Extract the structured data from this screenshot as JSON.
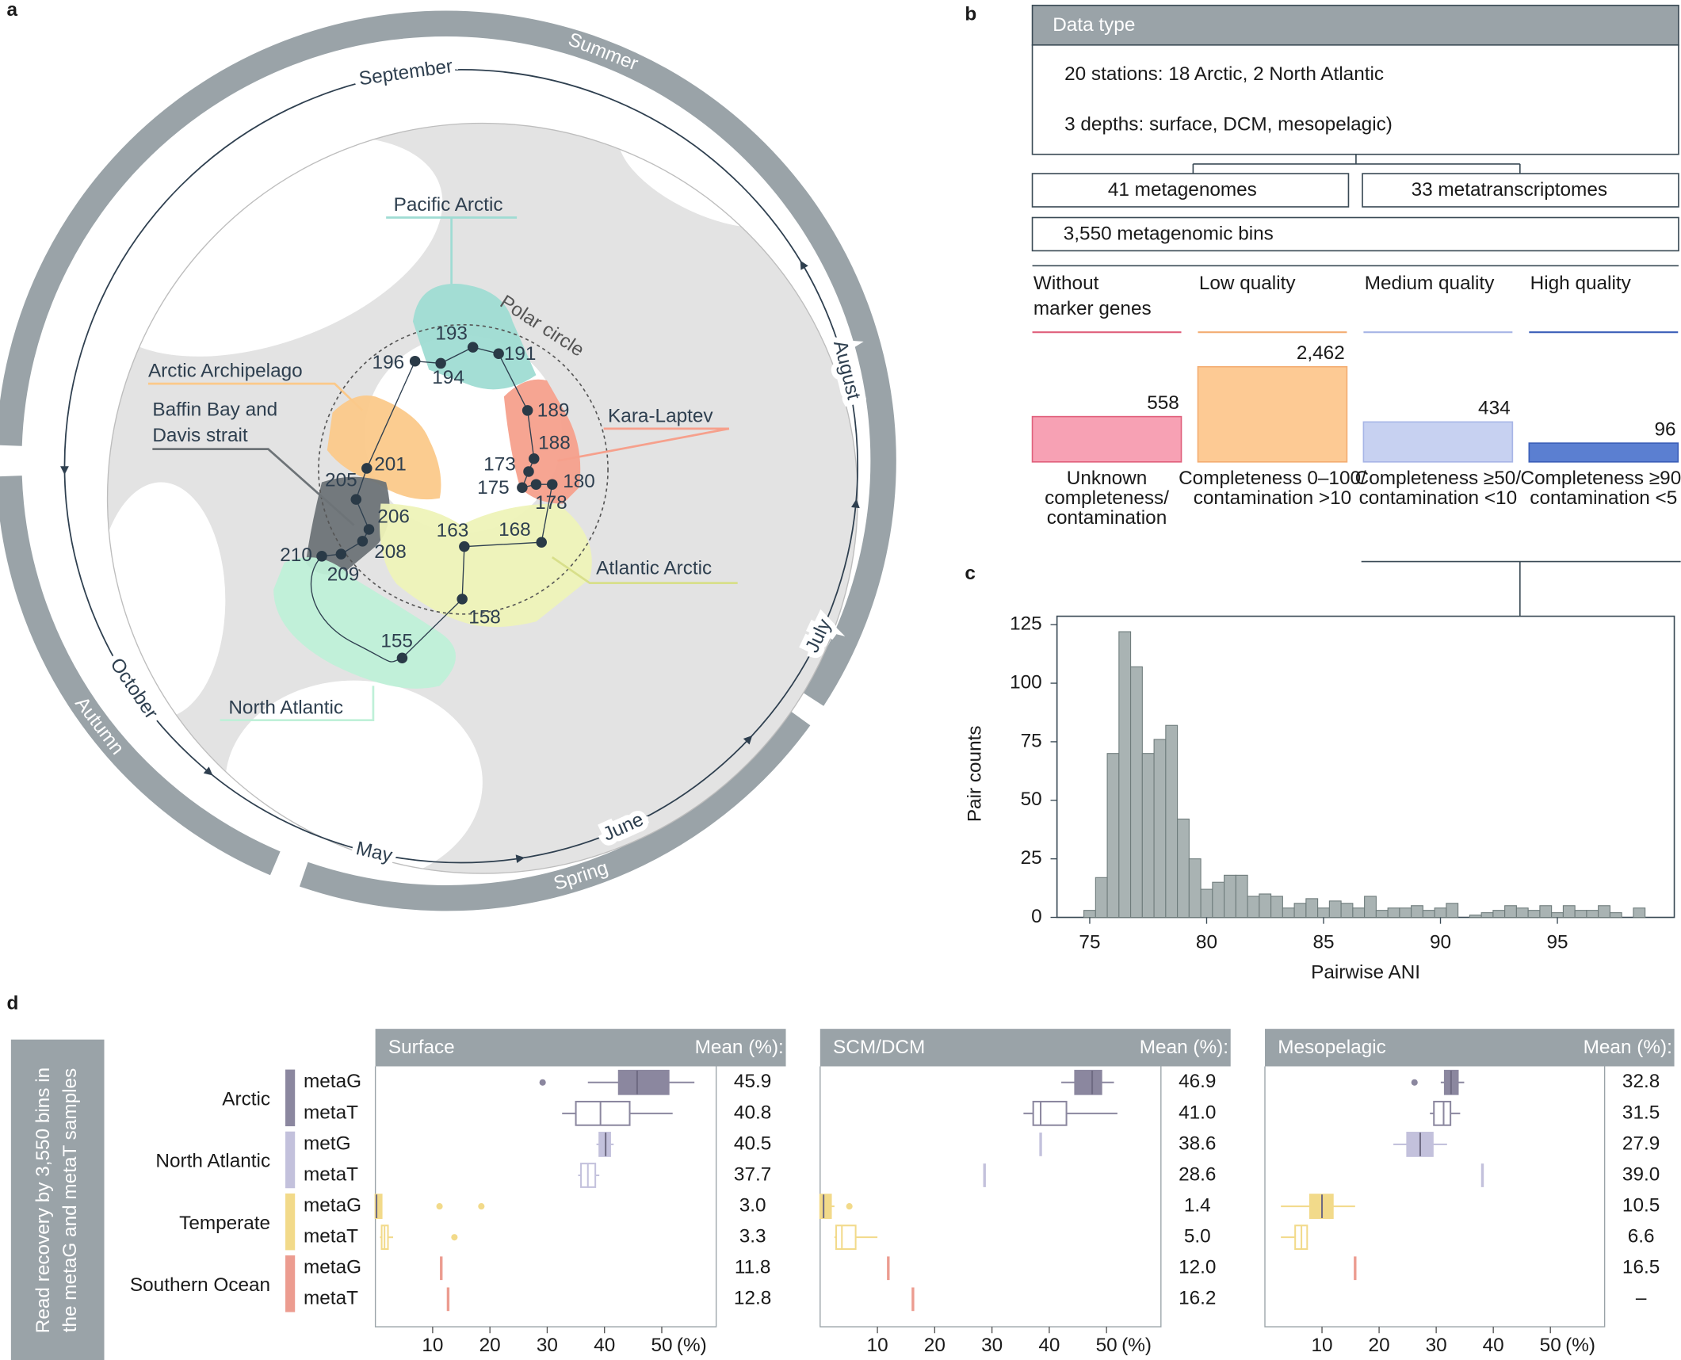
{
  "panel_labels": [
    "a",
    "b",
    "c",
    "d"
  ],
  "map": {
    "seasons": [
      "Summer",
      "Autumn",
      "Spring"
    ],
    "season_color": "#9aa3a8",
    "months": [
      "September",
      "August",
      "July",
      "June",
      "May",
      "October"
    ],
    "polar_circle": "Polar circle",
    "regions": [
      {
        "label": [
          "Pacific Arctic"
        ],
        "color": "#9fdcd3"
      },
      {
        "label": [
          "Arctic Archipelago"
        ],
        "color": "#fbc98a"
      },
      {
        "label": [
          "Baffin Bay and",
          "Davis strait"
        ],
        "color": "#6d7377"
      },
      {
        "label": [
          "Kara-Laptev"
        ],
        "color": "#f6a08c"
      },
      {
        "label": [
          "Atlantic Arctic"
        ],
        "color": "#eef3b8"
      },
      {
        "label": [
          "North Atlantic"
        ],
        "color": "#bff0d8"
      }
    ],
    "stations": [
      "193",
      "191",
      "196",
      "194",
      "189",
      "188",
      "173",
      "175",
      "178",
      "180",
      "201",
      "205",
      "206",
      "208",
      "209",
      "210",
      "163",
      "168",
      "158",
      "155"
    ]
  },
  "flow": {
    "header": "Data type",
    "details": [
      "20 stations: 18 Arctic, 2 North Atlantic",
      "3 depths: surface, DCM, mesopelagic)"
    ],
    "metagenomes": "41 metagenomes",
    "metatranscriptomes": "33 metatranscriptomes",
    "bins": "3,550 metagenomic bins"
  },
  "chart_data": [
    {
      "type": "bar",
      "scale": "sqrt",
      "categories": [
        [
          "Without",
          "marker genes"
        ],
        [
          "Low quality"
        ],
        [
          "Medium quality"
        ],
        [
          "High quality"
        ]
      ],
      "values": [
        558,
        2462,
        434,
        96
      ],
      "value_labels": [
        "558",
        "2,462",
        "434",
        "96"
      ],
      "colors": [
        "#f7a1b4",
        "#fdca94",
        "#c7d1f1",
        "#5b7fd1"
      ],
      "edge_colors": [
        "#e0607c",
        "#f3ad72",
        "#a7b5e6",
        "#3b5fb8"
      ],
      "descriptions": [
        [
          "Unknown",
          "completeness/",
          "contamination"
        ],
        [
          "Completeness 0–100/",
          "contamination >10"
        ],
        [
          "Completeness ≥50/",
          "contamination <10"
        ],
        [
          "Completeness ≥90/",
          "contamination <5"
        ]
      ]
    },
    {
      "type": "histogram",
      "bins": [
        74.75,
        75.25,
        75.75,
        76.25,
        76.75,
        77.25,
        77.75,
        78.25,
        78.75,
        79.25,
        79.75,
        80.25,
        80.75,
        81.25,
        81.75,
        82.25,
        82.75,
        83.25,
        83.75,
        84.25,
        84.75,
        85.25,
        85.75,
        86.25,
        86.75,
        87.25,
        87.75,
        88.25,
        88.75,
        89.25,
        89.75,
        90.25,
        90.75,
        91.25,
        91.75,
        92.25,
        92.75,
        93.25,
        93.75,
        94.25,
        94.75,
        95.25,
        95.75,
        96.25,
        96.75,
        97.25,
        97.75,
        98.25,
        98.75
      ],
      "values": [
        3,
        17,
        70,
        122,
        107,
        70,
        76,
        82,
        42,
        25,
        12,
        15,
        18,
        18,
        9,
        10,
        9,
        4,
        6,
        8,
        4,
        7,
        6,
        4,
        9,
        3,
        4,
        4,
        5,
        3,
        4,
        6,
        0,
        1,
        2,
        3,
        5,
        4,
        3,
        5,
        2,
        5,
        3,
        3,
        5,
        2,
        0,
        4
      ],
      "color": "#a9b3b3",
      "edge_color": "#6e7b7b",
      "xlim": [
        73.6,
        100
      ],
      "ylim": [
        0,
        128.6
      ],
      "xticks": [
        75,
        80,
        85,
        90,
        95
      ],
      "yticks": [
        0,
        25,
        50,
        75,
        100,
        125
      ],
      "xlabel": "Pairwise ANI",
      "ylabel": "Pair counts"
    },
    {
      "type": "box",
      "ylabel": [
        "Read recovery by 3,550 bins in",
        "the metaG and metaT samples"
      ],
      "mean_title": "Mean (%):",
      "xlim": [
        0,
        59.5
      ],
      "xticks": [
        10,
        20,
        30,
        40,
        50
      ],
      "x_unit": "(%)",
      "groups": [
        {
          "name": "Arctic",
          "color": "#8b879f",
          "rows": [
            {
              "name": "metaG",
              "style": "filled"
            },
            {
              "name": "metaT",
              "style": "open"
            }
          ]
        },
        {
          "name": "North Atlantic",
          "color": "#c3c1dc",
          "rows": [
            {
              "name": "metG",
              "style": "filled"
            },
            {
              "name": "metaT",
              "style": "open"
            }
          ]
        },
        {
          "name": "Temperate",
          "color": "#f2da8a",
          "rows": [
            {
              "name": "metaG",
              "style": "filled"
            },
            {
              "name": "metaT",
              "style": "open"
            }
          ]
        },
        {
          "name": "Southern Ocean",
          "color": "#ec9c90",
          "rows": [
            {
              "name": "metaG",
              "style": "filled"
            },
            {
              "name": "metaT",
              "style": "open"
            }
          ]
        }
      ],
      "panels": [
        {
          "title": "Surface",
          "boxes": [
            {
              "min": 37.1,
              "q1": 42.5,
              "median": 45.7,
              "q3": 51.2,
              "max": 55.7,
              "outliers": [
                29.2
              ]
            },
            {
              "min": 32.6,
              "q1": 35.0,
              "median": 39.3,
              "q3": 44.4,
              "max": 51.9
            },
            {
              "min": 38.6,
              "q1": 39.1,
              "median": 40.2,
              "q3": 41.0,
              "max": 41.6
            },
            {
              "min": 35.4,
              "q1": 35.9,
              "median": 37.1,
              "q3": 38.4,
              "max": 39.1
            },
            {
              "min": 0,
              "q1": 0,
              "median": 0.2,
              "q3": 1.1,
              "max": 1.2,
              "outliers": [
                11.2,
                18.5
              ]
            },
            {
              "min": 0.8,
              "q1": 1.1,
              "median": 1.6,
              "q3": 2.2,
              "max": 3.1,
              "outliers": [
                13.8
              ]
            },
            {
              "value": 11.5
            },
            {
              "value": 12.7
            }
          ],
          "means": [
            45.9,
            40.8,
            40.5,
            37.7,
            3.0,
            3.3,
            11.8,
            12.8
          ],
          "mean_labels": [
            "45.9",
            "40.8",
            "40.5",
            "37.7",
            "3.0",
            "3.3",
            "11.8",
            "12.8"
          ]
        },
        {
          "title": "SCM/DCM",
          "boxes": [
            {
              "min": 42.1,
              "q1": 44.5,
              "median": 47.5,
              "q3": 49.1,
              "max": 51.3
            },
            {
              "min": 35.5,
              "q1": 37.2,
              "median": 38.5,
              "q3": 43.0,
              "max": 51.9
            },
            {
              "value": 38.5
            },
            {
              "value": 28.7
            },
            {
              "min": 0,
              "q1": 0,
              "median": 0.6,
              "q3": 1.9,
              "max": 2.5,
              "outliers": [
                5.1
              ]
            },
            {
              "min": 2.5,
              "q1": 2.8,
              "median": 3.8,
              "q3": 6.2,
              "max": 10.0
            },
            {
              "value": 11.9
            },
            {
              "value": 16.2
            }
          ],
          "means": [
            46.9,
            41.0,
            38.6,
            28.6,
            1.4,
            5.0,
            12.0,
            16.2
          ],
          "mean_labels": [
            "46.9",
            "41.0",
            "38.6",
            "28.6",
            "1.4",
            "5.0",
            "12.0",
            "16.2"
          ]
        },
        {
          "title": "Mesopelagic",
          "boxes": [
            {
              "min": 30.8,
              "q1": 31.5,
              "median": 32.6,
              "q3": 33.8,
              "max": 34.9,
              "outliers": [
                26.2
              ]
            },
            {
              "min": 28.9,
              "q1": 29.6,
              "median": 31.3,
              "q3": 32.5,
              "max": 34.2
            },
            {
              "min": 22.5,
              "q1": 24.9,
              "median": 27.2,
              "q3": 29.4,
              "max": 31.9
            },
            {
              "value": 38.1
            },
            {
              "min": 2.8,
              "q1": 7.9,
              "median": 10.0,
              "q3": 11.9,
              "max": 15.8
            },
            {
              "min": 2.8,
              "q1": 5.3,
              "median": 6.4,
              "q3": 7.4,
              "max": 7.4
            },
            {
              "value": 15.8
            },
            null
          ],
          "means": [
            32.8,
            31.5,
            27.9,
            39.0,
            10.5,
            6.6,
            16.5,
            null
          ],
          "mean_labels": [
            "32.8",
            "31.5",
            "27.9",
            "39.0",
            "10.5",
            "6.6",
            "16.5",
            "–"
          ]
        }
      ]
    }
  ]
}
